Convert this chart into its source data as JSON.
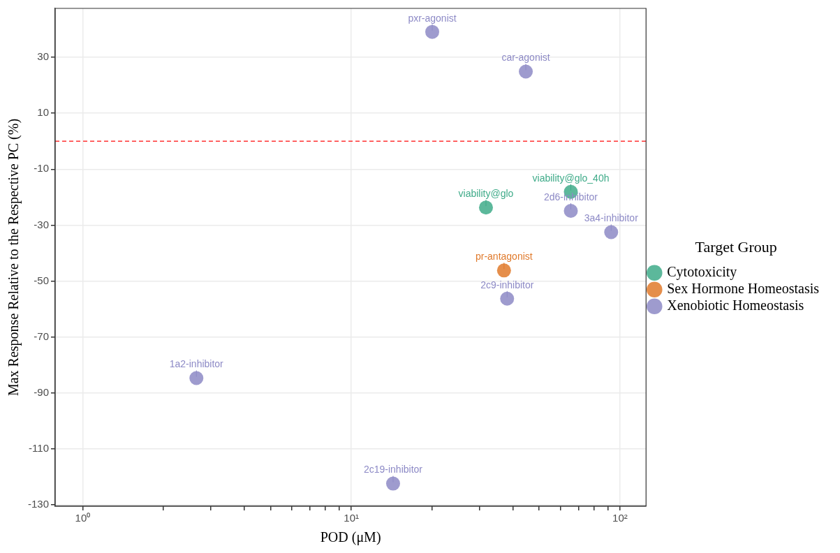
{
  "chart_data": {
    "type": "scatter",
    "xlabel": "POD (μM)",
    "ylabel": "Max Response Relative to the Respective PC (%)",
    "legend_title": "Target Group",
    "legend": "right",
    "grid": true,
    "log": "x",
    "marker": "circle",
    "xlim": [
      0.79,
      125
    ],
    "ylim": [
      -130.5,
      47.5
    ],
    "xticks": [
      {
        "value": 1,
        "label": "10⁰"
      },
      {
        "value": 2,
        "label": null
      },
      {
        "value": 3,
        "label": null
      },
      {
        "value": 4,
        "label": null
      },
      {
        "value": 5,
        "label": null
      },
      {
        "value": 6,
        "label": null
      },
      {
        "value": 7,
        "label": null
      },
      {
        "value": 8,
        "label": null
      },
      {
        "value": 9,
        "label": null
      },
      {
        "value": 10,
        "label": "10¹"
      },
      {
        "value": 20,
        "label": null
      },
      {
        "value": 30,
        "label": null
      },
      {
        "value": 40,
        "label": null
      },
      {
        "value": 50,
        "label": null
      },
      {
        "value": 60,
        "label": null
      },
      {
        "value": 70,
        "label": null
      },
      {
        "value": 80,
        "label": null
      },
      {
        "value": 90,
        "label": null
      },
      {
        "value": 100,
        "label": "10²"
      }
    ],
    "yticks": [
      -130,
      -110,
      -90,
      -70,
      -50,
      -30,
      -10,
      10,
      30
    ],
    "series": [
      {
        "name": "Cytotoxicity",
        "color": "#3fab89",
        "x": [
          31.7,
          65.6
        ],
        "values": [
          -23.7,
          -18.1
        ]
      },
      {
        "name": "Sex Hormone Homeostasis",
        "color": "#e07a2c",
        "x": [
          37.0
        ],
        "values": [
          -46.2
        ]
      },
      {
        "name": "Xenobiotic Homeostasis",
        "color": "#8d8ac6",
        "x": [
          20.0,
          44.6,
          65.6,
          92.7,
          38.0,
          2.65,
          14.3
        ],
        "values": [
          39.1,
          24.9,
          -24.9,
          -32.5,
          -56.3,
          -84.7,
          -122.4
        ]
      }
    ],
    "annotations": [
      {
        "text": "viability@glo",
        "x": 31.7,
        "y": -23.7
      },
      {
        "text": "viability@glo_40h",
        "x": 65.6,
        "y": -18.1
      },
      {
        "text": "pr-antagonist",
        "x": 37.0,
        "y": -46.2
      },
      {
        "text": "pxr-agonist",
        "x": 20.0,
        "y": 39.1
      },
      {
        "text": "car-agonist",
        "x": 44.6,
        "y": 24.9
      },
      {
        "text": "2d6-inhibitor",
        "x": 65.6,
        "y": -24.9
      },
      {
        "text": "3a4-inhibitor",
        "x": 92.7,
        "y": -32.5
      },
      {
        "text": "2c9-inhibitor",
        "x": 38.0,
        "y": -56.3
      },
      {
        "text": "1a2-inhibitor",
        "x": 2.65,
        "y": -84.7
      },
      {
        "text": "2c19-inhibitor",
        "x": 14.3,
        "y": -122.4
      }
    ],
    "ref_lines": [
      {
        "axis": "y",
        "value": 0,
        "color": "#ff3333",
        "line_style": "dashed"
      }
    ]
  }
}
